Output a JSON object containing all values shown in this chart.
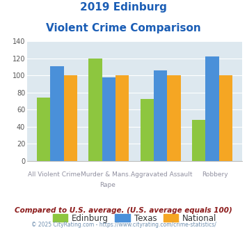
{
  "title_line1": "2019 Edinburg",
  "title_line2": "Violent Crime Comparison",
  "cat_labels_top": [
    "",
    "Murder & Mans...",
    "",
    ""
  ],
  "cat_labels_bot": [
    "All Violent Crime",
    "Rape",
    "Aggravated Assault",
    "Robbery"
  ],
  "edinburg": [
    74,
    120,
    73,
    48
  ],
  "texas": [
    111,
    98,
    106,
    122
  ],
  "national": [
    100,
    100,
    100,
    100
  ],
  "color_edinburg": "#8dc63f",
  "color_texas": "#4a90d9",
  "color_national": "#f5a623",
  "ylim": [
    0,
    140
  ],
  "yticks": [
    0,
    20,
    40,
    60,
    80,
    100,
    120,
    140
  ],
  "legend_labels": [
    "Edinburg",
    "Texas",
    "National"
  ],
  "footnote1": "Compared to U.S. average. (U.S. average equals 100)",
  "footnote2": "© 2025 CityRating.com - https://www.cityrating.com/crime-statistics/",
  "bg_color": "#dde8ef",
  "title_color": "#1a5db5",
  "footnote1_color": "#8b1a1a",
  "footnote2_color": "#7090b0"
}
